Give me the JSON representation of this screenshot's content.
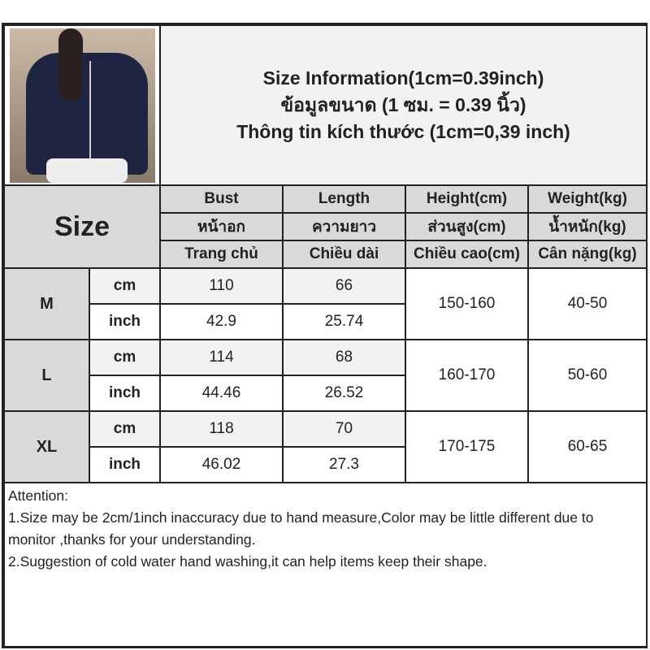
{
  "title": {
    "line1": "Size Information(1cm=0.39inch)",
    "line2": "ข้อมูลขนาด (1 ซม. = 0.39 นิ้ว)",
    "line3": "Thông tin kích thước (1cm=0,39 inch)"
  },
  "photo": {
    "icon": "product-photo-navy-zip-jacket"
  },
  "table": {
    "size_label": "Size",
    "columns": [
      {
        "en": "Bust",
        "th": "หน้าอก",
        "vi": "Trang chủ"
      },
      {
        "en": "Length",
        "th": "ความยาว",
        "vi": "Chiều dài"
      },
      {
        "en": "Height(cm)",
        "th": "ส่วนสูง(cm)",
        "vi": "Chiều cao(cm)"
      },
      {
        "en": "Weight(kg)",
        "th": "น้ำหนัก(kg)",
        "vi": "Cân nặng(kg)"
      }
    ],
    "rows": [
      {
        "size": "M",
        "cm_label": "cm",
        "inch_label": "inch",
        "bust_cm": "110",
        "length_cm": "66",
        "bust_in": "42.9",
        "length_in": "25.74",
        "height": "150-160",
        "weight": "40-50"
      },
      {
        "size": "L",
        "cm_label": "cm",
        "inch_label": "inch",
        "bust_cm": "114",
        "length_cm": "68",
        "bust_in": "44.46",
        "length_in": "26.52",
        "height": "160-170",
        "weight": "50-60"
      },
      {
        "size": "XL",
        "cm_label": "cm",
        "inch_label": "inch",
        "bust_cm": "118",
        "length_cm": "70",
        "bust_in": "46.02",
        "length_in": "27.3",
        "height": "170-175",
        "weight": "60-65"
      }
    ]
  },
  "attention": {
    "heading": "Attention:",
    "note1": "1.Size may be 2cm/1inch inaccuracy due to hand measure,Color may be little different due to monitor ,thanks for your understanding.",
    "note2": "2.Suggestion of cold water hand washing,it can help items keep their shape."
  },
  "colors": {
    "header_bg": "#d9d9d9",
    "light_bg": "#f2f2f2",
    "border": "#222222"
  }
}
